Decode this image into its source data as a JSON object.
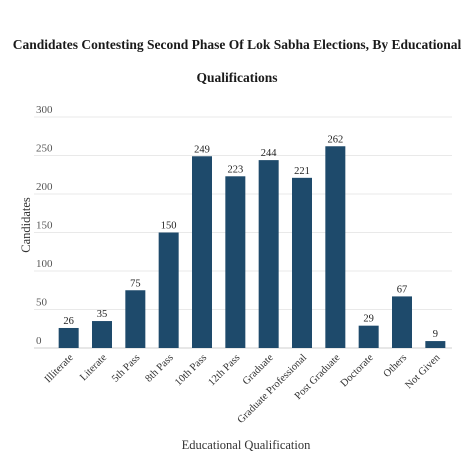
{
  "chart_data": {
    "type": "bar",
    "title": "Candidates Contesting Second Phase Of Lok Sabha Elections, By Educational Qualifications",
    "xlabel": "Educational Qualification",
    "ylabel": "Candidates",
    "categories": [
      "Illiterate",
      "Literate",
      "5th Pass",
      "8th Pass",
      "10th Pass",
      "12th Pass",
      "Graduate",
      "Graduate Professional",
      "Post Graduate",
      "Doctorate",
      "Others",
      "Not Given"
    ],
    "values": [
      26,
      35,
      75,
      150,
      249,
      223,
      244,
      221,
      262,
      29,
      67,
      9
    ],
    "ylim": [
      0,
      300
    ],
    "yticks": [
      0,
      50,
      100,
      150,
      200,
      250,
      300
    ],
    "grid": true,
    "legend": "none",
    "bar_color": "#1e4a6b"
  }
}
